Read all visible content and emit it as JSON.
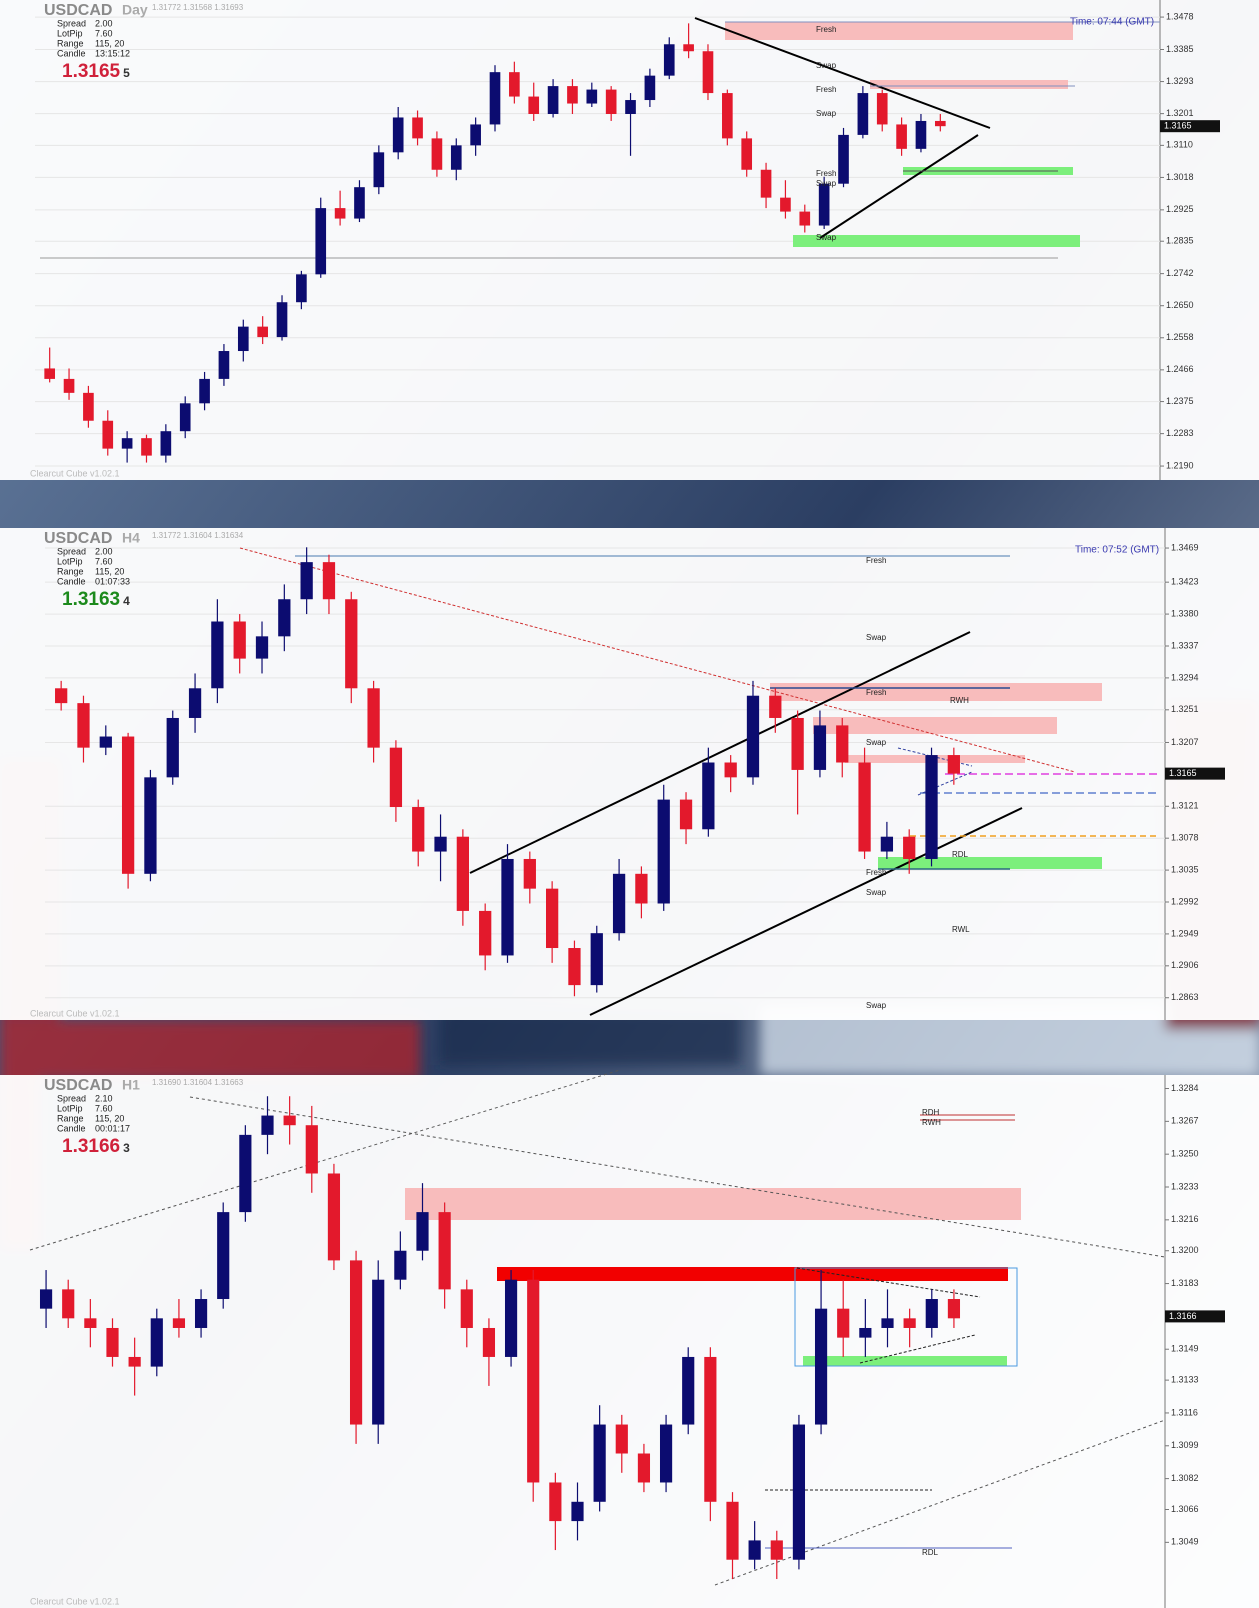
{
  "chart_data": [
    {
      "type": "candlestick",
      "symbol": "USDCAD",
      "timeframe": "Day",
      "quote": "1.31772 1.31568 1.31693",
      "info": [
        [
          "Spread",
          "2.00"
        ],
        [
          "LotPip",
          "7.60"
        ],
        [
          "Range",
          "115, 20"
        ],
        [
          "Candle",
          "13:15:12"
        ]
      ],
      "price": "1.3165",
      "price_digit": "5",
      "price_color": "#d0213a",
      "time_label": "Time: 07:44 (GMT)",
      "footer": "Clearcut Cube v1.02.1",
      "zone_labels": [
        "Fresh",
        "Swap",
        "Fresh",
        "Swap",
        "Fresh",
        "Swap",
        "Swap"
      ],
      "up_color": "#0c0c70",
      "down_color": "#e3192c",
      "last_price": {
        "value": 1.3165,
        "label": "1.3165"
      },
      "ylim": [
        1.215,
        1.3527
      ],
      "yticks": [
        {
          "value": 1.3478,
          "label": "1.3478"
        },
        {
          "value": 1.3385,
          "label": "1.3385"
        },
        {
          "value": 1.3293,
          "label": "1.3293"
        },
        {
          "value": 1.3201,
          "label": "1.3201"
        },
        {
          "value": 1.311,
          "label": "1.3110"
        },
        {
          "value": 1.3018,
          "label": "1.3018"
        },
        {
          "value": 1.2925,
          "label": "1.2925"
        },
        {
          "value": 1.2835,
          "label": "1.2835"
        },
        {
          "value": 1.2742,
          "label": "1.2742"
        },
        {
          "value": 1.265,
          "label": "1.2650"
        },
        {
          "value": 1.2558,
          "label": "1.2558"
        },
        {
          "value": 1.2466,
          "label": "1.2466"
        },
        {
          "value": 1.2375,
          "label": "1.2375"
        },
        {
          "value": 1.2283,
          "label": "1.2283"
        },
        {
          "value": 1.219,
          "label": "1.2190"
        }
      ],
      "grid": true,
      "ohlc": [
        [
          1.247,
          1.253,
          1.243,
          1.244
        ],
        [
          1.244,
          1.247,
          1.238,
          1.24
        ],
        [
          1.24,
          1.242,
          1.23,
          1.232
        ],
        [
          1.232,
          1.235,
          1.222,
          1.224
        ],
        [
          1.224,
          1.229,
          1.22,
          1.227
        ],
        [
          1.227,
          1.228,
          1.22,
          1.222
        ],
        [
          1.222,
          1.231,
          1.22,
          1.229
        ],
        [
          1.229,
          1.239,
          1.227,
          1.237
        ],
        [
          1.237,
          1.246,
          1.235,
          1.244
        ],
        [
          1.244,
          1.254,
          1.242,
          1.252
        ],
        [
          1.252,
          1.261,
          1.249,
          1.259
        ],
        [
          1.259,
          1.262,
          1.254,
          1.256
        ],
        [
          1.256,
          1.268,
          1.255,
          1.266
        ],
        [
          1.266,
          1.275,
          1.264,
          1.274
        ],
        [
          1.274,
          1.296,
          1.273,
          1.293
        ],
        [
          1.293,
          1.298,
          1.288,
          1.29
        ],
        [
          1.29,
          1.301,
          1.289,
          1.299
        ],
        [
          1.299,
          1.311,
          1.297,
          1.309
        ],
        [
          1.309,
          1.322,
          1.307,
          1.319
        ],
        [
          1.319,
          1.321,
          1.311,
          1.313
        ],
        [
          1.313,
          1.315,
          1.302,
          1.304
        ],
        [
          1.304,
          1.313,
          1.301,
          1.311
        ],
        [
          1.311,
          1.319,
          1.308,
          1.317
        ],
        [
          1.317,
          1.334,
          1.315,
          1.332
        ],
        [
          1.332,
          1.335,
          1.323,
          1.325
        ],
        [
          1.325,
          1.329,
          1.318,
          1.32
        ],
        [
          1.32,
          1.33,
          1.319,
          1.328
        ],
        [
          1.328,
          1.33,
          1.32,
          1.323
        ],
        [
          1.323,
          1.329,
          1.322,
          1.327
        ],
        [
          1.327,
          1.328,
          1.318,
          1.32
        ],
        [
          1.32,
          1.326,
          1.308,
          1.324
        ],
        [
          1.324,
          1.333,
          1.322,
          1.331
        ],
        [
          1.331,
          1.342,
          1.33,
          1.34
        ],
        [
          1.34,
          1.346,
          1.336,
          1.338
        ],
        [
          1.338,
          1.34,
          1.324,
          1.326
        ],
        [
          1.326,
          1.327,
          1.311,
          1.313
        ],
        [
          1.313,
          1.315,
          1.302,
          1.304
        ],
        [
          1.304,
          1.306,
          1.293,
          1.296
        ],
        [
          1.296,
          1.301,
          1.29,
          1.292
        ],
        [
          1.292,
          1.294,
          1.286,
          1.288
        ],
        [
          1.288,
          1.302,
          1.287,
          1.3
        ],
        [
          1.3,
          1.316,
          1.299,
          1.314
        ],
        [
          1.314,
          1.328,
          1.313,
          1.326
        ],
        [
          1.326,
          1.327,
          1.315,
          1.317
        ],
        [
          1.317,
          1.319,
          1.308,
          1.31
        ],
        [
          1.31,
          1.32,
          1.309,
          1.318
        ],
        [
          1.318,
          1.32,
          1.315,
          1.3165
        ]
      ]
    },
    {
      "type": "candlestick",
      "symbol": "USDCAD",
      "timeframe": "H4",
      "quote": "1.31772 1.31604 1.31634",
      "info": [
        [
          "Spread",
          "2.00"
        ],
        [
          "LotPip",
          "7.60"
        ],
        [
          "Range",
          "115, 20"
        ],
        [
          "Candle",
          "01:07:33"
        ]
      ],
      "price": "1.3163",
      "price_digit": "4",
      "price_color": "#1c8a1c",
      "time_label": "Time: 07:52 (GMT)",
      "footer": "Clearcut Cube v1.02.1",
      "zone_labels": [
        "Fresh",
        "Swap",
        "Fresh",
        "Swap",
        "Fresh",
        "Swap",
        "Swap",
        "RWH",
        "RDL",
        "RWL"
      ],
      "up_color": "#0c0c70",
      "down_color": "#e3192c",
      "last_price": {
        "value": 1.3165,
        "label": "1.3165"
      },
      "ylim": [
        1.2833,
        1.3496
      ],
      "yticks": [
        {
          "value": 1.3469,
          "label": "1.3469"
        },
        {
          "value": 1.3423,
          "label": "1.3423"
        },
        {
          "value": 1.338,
          "label": "1.3380"
        },
        {
          "value": 1.3337,
          "label": "1.3337"
        },
        {
          "value": 1.3294,
          "label": "1.3294"
        },
        {
          "value": 1.3251,
          "label": "1.3251"
        },
        {
          "value": 1.3207,
          "label": "1.3207"
        },
        {
          "value": 1.3121,
          "label": "1.3121"
        },
        {
          "value": 1.3078,
          "label": "1.3078"
        },
        {
          "value": 1.3035,
          "label": "1.3035"
        },
        {
          "value": 1.2992,
          "label": "1.2992"
        },
        {
          "value": 1.2949,
          "label": "1.2949"
        },
        {
          "value": 1.2906,
          "label": "1.2906"
        },
        {
          "value": 1.2863,
          "label": "1.2863"
        }
      ],
      "grid": true,
      "ohlc": [
        [
          1.328,
          1.329,
          1.325,
          1.326
        ],
        [
          1.326,
          1.327,
          1.318,
          1.32
        ],
        [
          1.32,
          1.323,
          1.319,
          1.3215
        ],
        [
          1.3215,
          1.322,
          1.301,
          1.303
        ],
        [
          1.303,
          1.317,
          1.302,
          1.316
        ],
        [
          1.316,
          1.325,
          1.315,
          1.324
        ],
        [
          1.324,
          1.33,
          1.322,
          1.328
        ],
        [
          1.328,
          1.34,
          1.326,
          1.337
        ],
        [
          1.337,
          1.338,
          1.33,
          1.332
        ],
        [
          1.332,
          1.337,
          1.33,
          1.335
        ],
        [
          1.335,
          1.342,
          1.333,
          1.34
        ],
        [
          1.34,
          1.347,
          1.338,
          1.345
        ],
        [
          1.345,
          1.346,
          1.338,
          1.34
        ],
        [
          1.34,
          1.341,
          1.326,
          1.328
        ],
        [
          1.328,
          1.329,
          1.318,
          1.32
        ],
        [
          1.32,
          1.321,
          1.31,
          1.312
        ],
        [
          1.312,
          1.313,
          1.304,
          1.306
        ],
        [
          1.306,
          1.311,
          1.302,
          1.308
        ],
        [
          1.308,
          1.309,
          1.296,
          1.298
        ],
        [
          1.298,
          1.299,
          1.29,
          1.292
        ],
        [
          1.292,
          1.307,
          1.291,
          1.305
        ],
        [
          1.305,
          1.306,
          1.299,
          1.301
        ],
        [
          1.301,
          1.302,
          1.291,
          1.293
        ],
        [
          1.293,
          1.294,
          1.2865,
          1.288
        ],
        [
          1.288,
          1.296,
          1.287,
          1.295
        ],
        [
          1.295,
          1.305,
          1.294,
          1.303
        ],
        [
          1.303,
          1.304,
          1.297,
          1.299
        ],
        [
          1.299,
          1.315,
          1.298,
          1.313
        ],
        [
          1.313,
          1.314,
          1.307,
          1.309
        ],
        [
          1.309,
          1.32,
          1.308,
          1.318
        ],
        [
          1.318,
          1.319,
          1.314,
          1.316
        ],
        [
          1.316,
          1.329,
          1.315,
          1.327
        ],
        [
          1.327,
          1.328,
          1.322,
          1.324
        ],
        [
          1.324,
          1.325,
          1.311,
          1.317
        ],
        [
          1.317,
          1.325,
          1.316,
          1.323
        ],
        [
          1.323,
          1.324,
          1.316,
          1.318
        ],
        [
          1.318,
          1.32,
          1.305,
          1.306
        ],
        [
          1.306,
          1.31,
          1.305,
          1.308
        ],
        [
          1.308,
          1.309,
          1.303,
          1.305
        ],
        [
          1.305,
          1.32,
          1.304,
          1.319
        ],
        [
          1.319,
          1.32,
          1.315,
          1.3165
        ]
      ]
    },
    {
      "type": "candlestick",
      "symbol": "USDCAD",
      "timeframe": "H1",
      "quote": "1.31690 1.31604 1.31663",
      "info": [
        [
          "Spread",
          "2.10"
        ],
        [
          "LotPip",
          "7.60"
        ],
        [
          "Range",
          "115, 20"
        ],
        [
          "Candle",
          "00:01:17"
        ]
      ],
      "price": "1.3166",
      "price_digit": "3",
      "price_color": "#d0213a",
      "footer": "Clearcut Cube v1.02.1",
      "zone_labels": [
        "RDH",
        "RWH",
        "RDL"
      ],
      "up_color": "#0c0c70",
      "down_color": "#e3192c",
      "last_price": {
        "value": 1.3166,
        "label": "1.3166"
      },
      "ylim": [
        1.3015,
        1.3291
      ],
      "yticks": [
        {
          "value": 1.3284,
          "label": "1.3284"
        },
        {
          "value": 1.3267,
          "label": "1.3267"
        },
        {
          "value": 1.325,
          "label": "1.3250"
        },
        {
          "value": 1.3233,
          "label": "1.3233"
        },
        {
          "value": 1.3216,
          "label": "1.3216"
        },
        {
          "value": 1.32,
          "label": "1.3200"
        },
        {
          "value": 1.3183,
          "label": "1.3183"
        },
        {
          "value": 1.3149,
          "label": "1.3149"
        },
        {
          "value": 1.3133,
          "label": "1.3133"
        },
        {
          "value": 1.3116,
          "label": "1.3116"
        },
        {
          "value": 1.3099,
          "label": "1.3099"
        },
        {
          "value": 1.3082,
          "label": "1.3082"
        },
        {
          "value": 1.3066,
          "label": "1.3066"
        },
        {
          "value": 1.3049,
          "label": "1.3049"
        }
      ],
      "grid": false,
      "ohlc": [
        [
          1.317,
          1.319,
          1.316,
          1.318
        ],
        [
          1.318,
          1.3185,
          1.316,
          1.3165
        ],
        [
          1.3165,
          1.3175,
          1.315,
          1.316
        ],
        [
          1.316,
          1.3165,
          1.314,
          1.3145
        ],
        [
          1.3145,
          1.3155,
          1.3125,
          1.314
        ],
        [
          1.314,
          1.317,
          1.3135,
          1.3165
        ],
        [
          1.3165,
          1.3175,
          1.3155,
          1.316
        ],
        [
          1.316,
          1.318,
          1.3155,
          1.3175
        ],
        [
          1.3175,
          1.3225,
          1.317,
          1.322
        ],
        [
          1.322,
          1.3265,
          1.3215,
          1.326
        ],
        [
          1.326,
          1.328,
          1.325,
          1.327
        ],
        [
          1.327,
          1.328,
          1.3255,
          1.3265
        ],
        [
          1.3265,
          1.3275,
          1.323,
          1.324
        ],
        [
          1.324,
          1.3245,
          1.319,
          1.3195
        ],
        [
          1.3195,
          1.32,
          1.31,
          1.311
        ],
        [
          1.311,
          1.3195,
          1.31,
          1.3185
        ],
        [
          1.3185,
          1.321,
          1.318,
          1.32
        ],
        [
          1.32,
          1.3235,
          1.3195,
          1.322
        ],
        [
          1.322,
          1.3225,
          1.317,
          1.318
        ],
        [
          1.318,
          1.3185,
          1.315,
          1.316
        ],
        [
          1.316,
          1.3165,
          1.313,
          1.3145
        ],
        [
          1.3145,
          1.319,
          1.314,
          1.3185
        ],
        [
          1.3185,
          1.319,
          1.307,
          1.308
        ],
        [
          1.308,
          1.3085,
          1.3045,
          1.306
        ],
        [
          1.306,
          1.308,
          1.305,
          1.307
        ],
        [
          1.307,
          1.312,
          1.3065,
          1.311
        ],
        [
          1.311,
          1.3115,
          1.3085,
          1.3095
        ],
        [
          1.3095,
          1.31,
          1.3075,
          1.308
        ],
        [
          1.308,
          1.3115,
          1.3075,
          1.311
        ],
        [
          1.311,
          1.315,
          1.3105,
          1.3145
        ],
        [
          1.3145,
          1.315,
          1.306,
          1.307
        ],
        [
          1.307,
          1.3075,
          1.303,
          1.304
        ],
        [
          1.304,
          1.306,
          1.3035,
          1.305
        ],
        [
          1.305,
          1.3055,
          1.303,
          1.304
        ],
        [
          1.304,
          1.3115,
          1.3035,
          1.311
        ],
        [
          1.311,
          1.319,
          1.3105,
          1.317
        ],
        [
          1.317,
          1.3185,
          1.3145,
          1.3155
        ],
        [
          1.3155,
          1.3175,
          1.3145,
          1.316
        ],
        [
          1.316,
          1.318,
          1.315,
          1.3165
        ],
        [
          1.3165,
          1.317,
          1.315,
          1.316
        ],
        [
          1.316,
          1.318,
          1.3155,
          1.3175
        ],
        [
          1.3175,
          1.318,
          1.316,
          1.3165
        ]
      ]
    }
  ]
}
